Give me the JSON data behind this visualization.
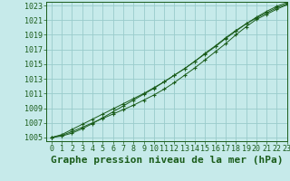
{
  "title": "Graphe pression niveau de la mer (hPa)",
  "background_color": "#c6eaea",
  "grid_color": "#99cccc",
  "line_color": "#1a5c1a",
  "marker_color": "#1a5c1a",
  "xlim": [
    -0.5,
    23
  ],
  "ylim": [
    1004.5,
    1023.5
  ],
  "xticks": [
    0,
    1,
    2,
    3,
    4,
    5,
    6,
    7,
    8,
    9,
    10,
    11,
    12,
    13,
    14,
    15,
    16,
    17,
    18,
    19,
    20,
    21,
    22,
    23
  ],
  "yticks": [
    1005,
    1007,
    1009,
    1011,
    1013,
    1015,
    1017,
    1019,
    1021,
    1023
  ],
  "series": [
    [
      1005.0,
      1005.3,
      1005.8,
      1006.4,
      1007.0,
      1007.6,
      1008.2,
      1008.8,
      1009.4,
      1010.1,
      1010.8,
      1011.6,
      1012.5,
      1013.5,
      1014.5,
      1015.6,
      1016.7,
      1017.8,
      1019.0,
      1020.1,
      1021.1,
      1021.8,
      1022.5,
      1023.1
    ],
    [
      1005.0,
      1005.2,
      1005.6,
      1006.2,
      1006.9,
      1007.7,
      1008.5,
      1009.3,
      1010.1,
      1010.9,
      1011.7,
      1012.6,
      1013.5,
      1014.4,
      1015.4,
      1016.5,
      1017.5,
      1018.6,
      1019.6,
      1020.5,
      1021.3,
      1022.0,
      1022.7,
      1023.2
    ],
    [
      1005.0,
      1005.4,
      1006.1,
      1006.8,
      1007.5,
      1008.2,
      1008.9,
      1009.6,
      1010.3,
      1011.0,
      1011.8,
      1012.6,
      1013.5,
      1014.4,
      1015.4,
      1016.4,
      1017.4,
      1018.5,
      1019.5,
      1020.5,
      1021.4,
      1022.2,
      1022.9,
      1023.4
    ]
  ],
  "title_fontsize": 8,
  "tick_fontsize": 6,
  "fig_width": 3.2,
  "fig_height": 2.0,
  "dpi": 100
}
